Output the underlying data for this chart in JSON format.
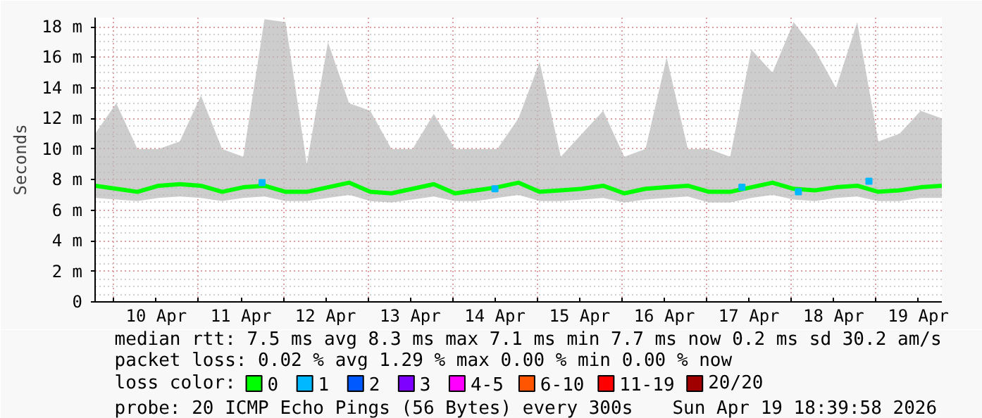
{
  "chart_data": {
    "type": "line",
    "ylabel": "Seconds",
    "legend_title": "loss color:",
    "x": [
      "2026-04-09T18:40",
      "2026-04-10T00:40",
      "2026-04-10T06:40",
      "2026-04-10T12:40",
      "2026-04-10T18:40",
      "2026-04-11T00:40",
      "2026-04-11T06:40",
      "2026-04-11T12:40",
      "2026-04-11T18:40",
      "2026-04-12T00:40",
      "2026-04-12T06:40",
      "2026-04-12T12:40",
      "2026-04-12T18:40",
      "2026-04-13T00:40",
      "2026-04-13T06:40",
      "2026-04-13T12:40",
      "2026-04-13T18:40",
      "2026-04-14T00:40",
      "2026-04-14T06:40",
      "2026-04-14T12:40",
      "2026-04-14T18:40",
      "2026-04-15T00:40",
      "2026-04-15T06:40",
      "2026-04-15T12:40",
      "2026-04-15T18:40",
      "2026-04-16T00:40",
      "2026-04-16T06:40",
      "2026-04-16T12:40",
      "2026-04-16T18:40",
      "2026-04-17T00:40",
      "2026-04-17T06:40",
      "2026-04-17T12:40",
      "2026-04-17T18:40",
      "2026-04-18T00:40",
      "2026-04-18T06:40",
      "2026-04-18T12:40",
      "2026-04-18T18:40",
      "2026-04-19T00:40",
      "2026-04-19T06:40",
      "2026-04-19T12:40",
      "2026-04-19T18:40"
    ],
    "series": [
      {
        "name": "0",
        "color": "#00ff00",
        "values": [
          7.6,
          7.4,
          7.2,
          7.6,
          7.7,
          7.6,
          7.2,
          7.5,
          7.6,
          7.2,
          7.2,
          7.5,
          7.8,
          7.2,
          7.1,
          7.4,
          7.7,
          7.1,
          7.3,
          7.5,
          7.8,
          7.2,
          7.3,
          7.4,
          7.6,
          7.1,
          7.4,
          7.5,
          7.6,
          7.2,
          7.2,
          7.5,
          7.8,
          7.4,
          7.3,
          7.5,
          7.6,
          7.2,
          7.3,
          7.5,
          7.6
        ],
        "lower": [
          6.8,
          6.7,
          6.6,
          6.8,
          6.9,
          6.8,
          6.6,
          6.8,
          6.9,
          6.6,
          6.6,
          6.8,
          7.0,
          6.6,
          6.5,
          6.7,
          6.9,
          6.6,
          6.6,
          6.8,
          7.0,
          6.6,
          6.6,
          6.7,
          6.8,
          6.5,
          6.7,
          6.8,
          6.9,
          6.5,
          6.5,
          6.8,
          7.0,
          6.7,
          6.6,
          6.8,
          6.9,
          6.6,
          6.6,
          6.8,
          6.8
        ],
        "upper": [
          11,
          13,
          10,
          10,
          10.5,
          13.5,
          10,
          9.5,
          18.5,
          18.3,
          9,
          17,
          13,
          12.5,
          10,
          10,
          12.3,
          10,
          10,
          10,
          12,
          15.7,
          9.5,
          11,
          12.5,
          9.5,
          10,
          16,
          10,
          10,
          9.5,
          16.5,
          15,
          18.3,
          16.5,
          14,
          18.3,
          10.5,
          11,
          12.5,
          12
        ]
      },
      {
        "name": "1",
        "type": "scatter",
        "marker": "square",
        "color": "#00b8ff",
        "x": [
          "2026-04-11T18:00",
          "2026-04-14T12:00",
          "2026-04-17T10:00",
          "2026-04-18T02:00",
          "2026-04-18T22:00"
        ],
        "values": [
          7.8,
          7.4,
          7.5,
          7.2,
          7.9
        ]
      },
      {
        "name": "2",
        "type": "scatter",
        "marker": "square",
        "color": "#0059ff",
        "values": [
          null,
          null,
          null,
          null,
          null,
          null,
          null,
          null,
          null,
          null,
          null,
          null,
          null,
          null,
          null,
          null,
          null,
          null,
          null,
          null,
          null,
          null,
          null,
          null,
          null,
          null,
          null,
          null,
          null,
          null,
          null,
          null,
          null,
          null,
          null,
          null,
          null,
          null,
          null,
          null,
          null
        ]
      },
      {
        "name": "3",
        "type": "scatter",
        "marker": "square",
        "color": "#7e00ff",
        "values": [
          null,
          null,
          null,
          null,
          null,
          null,
          null,
          null,
          null,
          null,
          null,
          null,
          null,
          null,
          null,
          null,
          null,
          null,
          null,
          null,
          null,
          null,
          null,
          null,
          null,
          null,
          null,
          null,
          null,
          null,
          null,
          null,
          null,
          null,
          null,
          null,
          null,
          null,
          null,
          null,
          null
        ]
      },
      {
        "name": "4-5",
        "type": "scatter",
        "marker": "square",
        "color": "#ff00ff",
        "values": [
          null,
          null,
          null,
          null,
          null,
          null,
          null,
          null,
          null,
          null,
          null,
          null,
          null,
          null,
          null,
          null,
          null,
          null,
          null,
          null,
          null,
          null,
          null,
          null,
          null,
          null,
          null,
          null,
          null,
          null,
          null,
          null,
          null,
          null,
          null,
          null,
          null,
          null,
          null,
          null,
          null
        ]
      },
      {
        "name": "6-10",
        "type": "scatter",
        "marker": "square",
        "color": "#ff5500",
        "values": [
          null,
          null,
          null,
          null,
          null,
          null,
          null,
          null,
          null,
          null,
          null,
          null,
          null,
          null,
          null,
          null,
          null,
          null,
          null,
          null,
          null,
          null,
          null,
          null,
          null,
          null,
          null,
          null,
          null,
          null,
          null,
          null,
          null,
          null,
          null,
          null,
          null,
          null,
          null,
          null,
          null
        ]
      },
      {
        "name": "11-19",
        "type": "scatter",
        "marker": "square",
        "color": "#ff0000",
        "values": [
          null,
          null,
          null,
          null,
          null,
          null,
          null,
          null,
          null,
          null,
          null,
          null,
          null,
          null,
          null,
          null,
          null,
          null,
          null,
          null,
          null,
          null,
          null,
          null,
          null,
          null,
          null,
          null,
          null,
          null,
          null,
          null,
          null,
          null,
          null,
          null,
          null,
          null,
          null,
          null,
          null
        ]
      },
      {
        "name": "20/20",
        "type": "scatter",
        "marker": "square",
        "color": "#a10000",
        "values": [
          null,
          null,
          null,
          null,
          null,
          null,
          null,
          null,
          null,
          null,
          null,
          null,
          null,
          null,
          null,
          null,
          null,
          null,
          null,
          null,
          null,
          null,
          null,
          null,
          null,
          null,
          null,
          null,
          null,
          null,
          null,
          null,
          null,
          null,
          null,
          null,
          null,
          null,
          null,
          null,
          null
        ]
      }
    ],
    "xlim": [
      "2026-04-09T18:40",
      "2026-04-19T18:40"
    ],
    "xticks": [
      {
        "value": "2026-04-10",
        "label": null
      },
      {
        "value": "2026-04-10T12:00",
        "label": "10 Apr"
      },
      {
        "value": "2026-04-11",
        "label": null
      },
      {
        "value": "2026-04-11T12:00",
        "label": "11 Apr"
      },
      {
        "value": "2026-04-12",
        "label": null
      },
      {
        "value": "2026-04-12T12:00",
        "label": "12 Apr"
      },
      {
        "value": "2026-04-13",
        "label": null
      },
      {
        "value": "2026-04-13T12:00",
        "label": "13 Apr"
      },
      {
        "value": "2026-04-14",
        "label": null
      },
      {
        "value": "2026-04-14T12:00",
        "label": "14 Apr"
      },
      {
        "value": "2026-04-15",
        "label": null
      },
      {
        "value": "2026-04-15T12:00",
        "label": "15 Apr"
      },
      {
        "value": "2026-04-16",
        "label": null
      },
      {
        "value": "2026-04-16T12:00",
        "label": "16 Apr"
      },
      {
        "value": "2026-04-17",
        "label": null
      },
      {
        "value": "2026-04-17T12:00",
        "label": "17 Apr"
      },
      {
        "value": "2026-04-18",
        "label": null
      },
      {
        "value": "2026-04-18T12:00",
        "label": "18 Apr"
      },
      {
        "value": "2026-04-19",
        "label": null
      },
      {
        "value": "2026-04-19T12:00",
        "label": "19 Apr"
      }
    ],
    "ylim": [
      0,
      18.6
    ],
    "yticks": [
      0,
      {
        "value": 2,
        "label": "2 m"
      },
      {
        "value": 4,
        "label": "4 m"
      },
      {
        "value": 6,
        "label": "6 m"
      },
      {
        "value": 8,
        "label": "8 m"
      },
      {
        "value": 10,
        "label": "10 m"
      },
      {
        "value": 12,
        "label": "12 m"
      },
      {
        "value": 14,
        "label": "14 m"
      },
      {
        "value": 16,
        "label": "16 m"
      },
      {
        "value": 18,
        "label": "18 m"
      }
    ],
    "grid": true,
    "legend": "bottom",
    "marker": "none",
    "line_style": "solid",
    "annotations": [
      "median rtt:  7.5 ms avg  8.3 ms max  7.1 ms min  7.7 ms now  0.2 ms sd  30.2   am/s",
      "packet loss: 0.02 % avg  1.29 % max  0.00 % min  0.00 % now",
      "probe:       20 ICMP Echo Pings (56 Bytes) every 300s",
      "Sun Apr 19 18:39:58 2026"
    ]
  }
}
